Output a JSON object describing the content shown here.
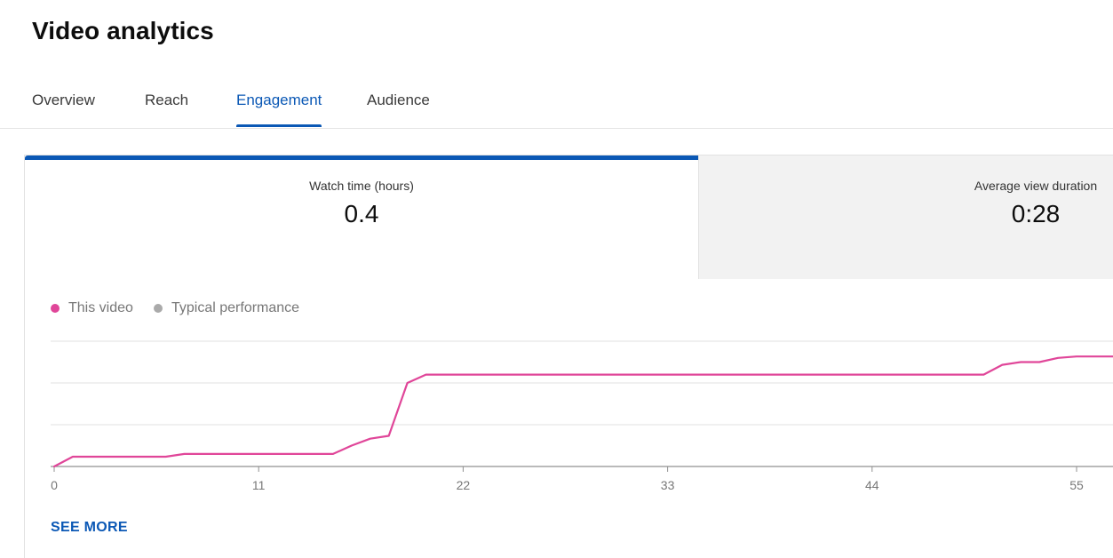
{
  "page": {
    "title": "Video analytics"
  },
  "tabs": [
    {
      "label": "Overview",
      "active": false
    },
    {
      "label": "Reach",
      "active": false
    },
    {
      "label": "Engagement",
      "active": true
    },
    {
      "label": "Audience",
      "active": false
    }
  ],
  "metrics": [
    {
      "label": "Watch time (hours)",
      "value": "0.4",
      "selected": true
    },
    {
      "label": "Average view duration",
      "value": "0:28",
      "selected": false
    }
  ],
  "colors": {
    "accent": "#0b58b5",
    "this_video": "#e04699",
    "typical": "#aaaaaa",
    "grid": "#e0e0e0",
    "axis": "#909090"
  },
  "legend": [
    {
      "label": "This video",
      "color": "#e04699"
    },
    {
      "label": "Typical performance",
      "color": "#aaaaaa"
    }
  ],
  "chart_data": {
    "type": "line",
    "title": "",
    "xlabel": "",
    "ylabel": "",
    "x_ticks": [
      "0",
      "11",
      "22",
      "33",
      "44",
      "55"
    ],
    "xlim": [
      0,
      57
    ],
    "ylim": [
      0,
      0.45
    ],
    "grid": true,
    "legend_placement": "top-left",
    "series": [
      {
        "name": "This video",
        "color": "#e04699",
        "points": [
          [
            0,
            0
          ],
          [
            1,
            0.035
          ],
          [
            6,
            0.035
          ],
          [
            7,
            0.045
          ],
          [
            15,
            0.045
          ],
          [
            16,
            0.075
          ],
          [
            17,
            0.1
          ],
          [
            18,
            0.11
          ],
          [
            19,
            0.3
          ],
          [
            20,
            0.33
          ],
          [
            50,
            0.33
          ],
          [
            51,
            0.365
          ],
          [
            52,
            0.375
          ],
          [
            53,
            0.375
          ],
          [
            54,
            0.39
          ],
          [
            55,
            0.395
          ],
          [
            57,
            0.395
          ]
        ]
      }
    ]
  },
  "actions": {
    "see_more": "SEE MORE"
  }
}
